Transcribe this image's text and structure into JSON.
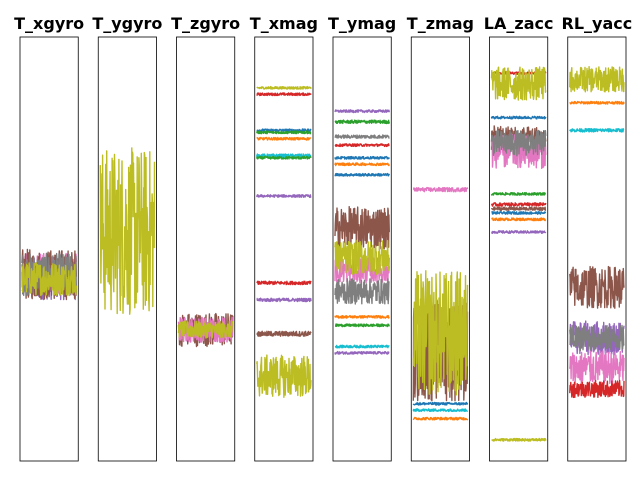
{
  "chart_data": {
    "type": "line",
    "ylim": [
      0,
      1
    ],
    "grid": false,
    "legend": "none",
    "palette": [
      "#1f77b4",
      "#ff7f0e",
      "#2ca02c",
      "#d62728",
      "#9467bd",
      "#8c564b",
      "#e377c2",
      "#7f7f7f",
      "#bcbd22",
      "#17becf"
    ],
    "panels": [
      {
        "title": "T_xgyro",
        "series": [
          {
            "color_index": 4,
            "level": 0.43,
            "noise": 0.05,
            "kind": "noisy"
          },
          {
            "color_index": 6,
            "level": 0.44,
            "noise": 0.05,
            "kind": "noisy"
          },
          {
            "color_index": 5,
            "level": 0.44,
            "noise": 0.06,
            "kind": "noisy"
          },
          {
            "color_index": 7,
            "level": 0.44,
            "noise": 0.05,
            "kind": "noisy"
          },
          {
            "color_index": 8,
            "level": 0.43,
            "noise": 0.04,
            "kind": "noisy"
          }
        ]
      },
      {
        "title": "T_ygyro",
        "series": [
          {
            "color_index": 8,
            "level": 0.54,
            "noise": 0.2,
            "kind": "noisy"
          }
        ]
      },
      {
        "title": "T_zgyro",
        "series": [
          {
            "color_index": 5,
            "level": 0.31,
            "noise": 0.04,
            "kind": "noisy"
          },
          {
            "color_index": 6,
            "level": 0.31,
            "noise": 0.03,
            "kind": "noisy"
          },
          {
            "color_index": 8,
            "level": 0.31,
            "noise": 0.02,
            "kind": "noisy"
          }
        ]
      },
      {
        "title": "T_xmag",
        "series": [
          {
            "color_index": 8,
            "level": 0.88,
            "noise": 0.003,
            "kind": "flat"
          },
          {
            "color_index": 3,
            "level": 0.865,
            "noise": 0.003,
            "kind": "flat"
          },
          {
            "color_index": 0,
            "level": 0.78,
            "noise": 0.003,
            "kind": "flat"
          },
          {
            "color_index": 2,
            "level": 0.775,
            "noise": 0.003,
            "kind": "flat"
          },
          {
            "color_index": 1,
            "level": 0.76,
            "noise": 0.003,
            "kind": "flat"
          },
          {
            "color_index": 9,
            "level": 0.72,
            "noise": 0.004,
            "kind": "flat"
          },
          {
            "color_index": 2,
            "level": 0.715,
            "noise": 0.003,
            "kind": "flat"
          },
          {
            "color_index": 4,
            "level": 0.625,
            "noise": 0.003,
            "kind": "flat"
          },
          {
            "color_index": 3,
            "level": 0.42,
            "noise": 0.004,
            "kind": "flat"
          },
          {
            "color_index": 4,
            "level": 0.38,
            "noise": 0.004,
            "kind": "flat"
          },
          {
            "color_index": 5,
            "level": 0.3,
            "noise": 0.006,
            "kind": "flat"
          },
          {
            "color_index": 8,
            "level": 0.2,
            "noise": 0.05,
            "kind": "noisy"
          }
        ]
      },
      {
        "title": "T_ymag",
        "series": [
          {
            "color_index": 4,
            "level": 0.825,
            "noise": 0.003,
            "kind": "flat"
          },
          {
            "color_index": 2,
            "level": 0.8,
            "noise": 0.004,
            "kind": "flat"
          },
          {
            "color_index": 7,
            "level": 0.765,
            "noise": 0.004,
            "kind": "flat"
          },
          {
            "color_index": 3,
            "level": 0.745,
            "noise": 0.003,
            "kind": "flat"
          },
          {
            "color_index": 0,
            "level": 0.715,
            "noise": 0.003,
            "kind": "flat"
          },
          {
            "color_index": 1,
            "level": 0.7,
            "noise": 0.003,
            "kind": "flat"
          },
          {
            "color_index": 0,
            "level": 0.675,
            "noise": 0.003,
            "kind": "flat"
          },
          {
            "color_index": 5,
            "level": 0.55,
            "noise": 0.05,
            "kind": "noisy"
          },
          {
            "color_index": 6,
            "level": 0.45,
            "noise": 0.03,
            "kind": "noisy"
          },
          {
            "color_index": 8,
            "level": 0.48,
            "noise": 0.04,
            "kind": "noisy"
          },
          {
            "color_index": 7,
            "level": 0.4,
            "noise": 0.03,
            "kind": "noisy"
          },
          {
            "color_index": 1,
            "level": 0.34,
            "noise": 0.003,
            "kind": "flat"
          },
          {
            "color_index": 2,
            "level": 0.32,
            "noise": 0.003,
            "kind": "flat"
          },
          {
            "color_index": 9,
            "level": 0.27,
            "noise": 0.003,
            "kind": "flat"
          },
          {
            "color_index": 4,
            "level": 0.255,
            "noise": 0.003,
            "kind": "flat"
          }
        ]
      },
      {
        "title": "T_zmag",
        "series": [
          {
            "color_index": 6,
            "level": 0.64,
            "noise": 0.005,
            "kind": "flat"
          },
          {
            "color_index": 5,
            "level": 0.26,
            "noise": 0.12,
            "kind": "noisy"
          },
          {
            "color_index": 8,
            "level": 0.3,
            "noise": 0.15,
            "kind": "noisy"
          },
          {
            "color_index": 0,
            "level": 0.135,
            "noise": 0.003,
            "kind": "flat"
          },
          {
            "color_index": 9,
            "level": 0.12,
            "noise": 0.003,
            "kind": "flat"
          },
          {
            "color_index": 1,
            "level": 0.1,
            "noise": 0.003,
            "kind": "flat"
          }
        ]
      },
      {
        "title": "LA_zacc",
        "series": [
          {
            "color_index": 3,
            "level": 0.915,
            "noise": 0.003,
            "kind": "flat"
          },
          {
            "color_index": 8,
            "level": 0.89,
            "noise": 0.04,
            "kind": "noisy"
          },
          {
            "color_index": 0,
            "level": 0.81,
            "noise": 0.003,
            "kind": "flat"
          },
          {
            "color_index": 5,
            "level": 0.76,
            "noise": 0.03,
            "kind": "noisy"
          },
          {
            "color_index": 6,
            "level": 0.73,
            "noise": 0.04,
            "kind": "noisy"
          },
          {
            "color_index": 7,
            "level": 0.75,
            "noise": 0.03,
            "kind": "noisy"
          },
          {
            "color_index": 2,
            "level": 0.63,
            "noise": 0.003,
            "kind": "flat"
          },
          {
            "color_index": 3,
            "level": 0.605,
            "noise": 0.004,
            "kind": "flat"
          },
          {
            "color_index": 5,
            "level": 0.595,
            "noise": 0.004,
            "kind": "flat"
          },
          {
            "color_index": 0,
            "level": 0.585,
            "noise": 0.003,
            "kind": "flat"
          },
          {
            "color_index": 1,
            "level": 0.57,
            "noise": 0.003,
            "kind": "flat"
          },
          {
            "color_index": 4,
            "level": 0.54,
            "noise": 0.003,
            "kind": "flat"
          },
          {
            "color_index": 8,
            "level": 0.05,
            "noise": 0.003,
            "kind": "flat"
          }
        ]
      },
      {
        "title": "RL_yacc",
        "series": [
          {
            "color_index": 8,
            "level": 0.9,
            "noise": 0.03,
            "kind": "noisy"
          },
          {
            "color_index": 1,
            "level": 0.845,
            "noise": 0.003,
            "kind": "flat"
          },
          {
            "color_index": 9,
            "level": 0.78,
            "noise": 0.004,
            "kind": "flat"
          },
          {
            "color_index": 5,
            "level": 0.41,
            "noise": 0.05,
            "kind": "noisy"
          },
          {
            "color_index": 4,
            "level": 0.29,
            "noise": 0.04,
            "kind": "noisy"
          },
          {
            "color_index": 6,
            "level": 0.22,
            "noise": 0.04,
            "kind": "noisy"
          },
          {
            "color_index": 7,
            "level": 0.29,
            "noise": 0.03,
            "kind": "noisy"
          },
          {
            "color_index": 3,
            "level": 0.17,
            "noise": 0.02,
            "kind": "noisy"
          }
        ]
      }
    ]
  }
}
